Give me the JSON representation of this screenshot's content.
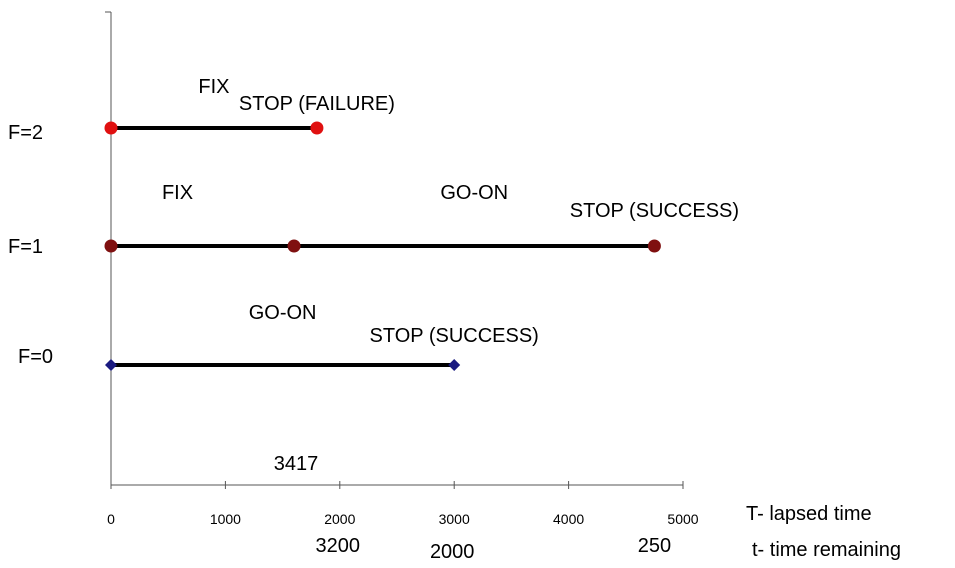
{
  "chart_data": {
    "type": "line",
    "xlim": [
      0,
      5000
    ],
    "x_ticks": [
      0,
      1000,
      2000,
      3000,
      4000,
      5000
    ],
    "x_axis_label": "T- lapsed time",
    "secondary_label": "t- time remaining",
    "secondary_values": [
      {
        "text": "3200",
        "at": 2000
      },
      {
        "text": "2000",
        "at": 3000
      },
      {
        "text": "250",
        "at": 4750
      }
    ],
    "floating_label": {
      "text": "3417",
      "at": 1600
    },
    "grid": false,
    "series": [
      {
        "name": "F=0",
        "color": "#1a1a80",
        "marker": "diamond",
        "points": [
          0,
          3000
        ],
        "segment_labels": [
          "GO-ON"
        ],
        "end_label": "STOP (SUCCESS)"
      },
      {
        "name": "F=1",
        "color": "#7f1010",
        "marker": "circle",
        "points": [
          0,
          1600,
          4750
        ],
        "segment_labels": [
          "FIX",
          "GO-ON"
        ],
        "end_label": "STOP (SUCCESS)"
      },
      {
        "name": "F=2",
        "color": "#e01010",
        "marker": "circle",
        "points": [
          0,
          1800
        ],
        "segment_labels": [
          "FIX"
        ],
        "end_label": "STOP (FAILURE)"
      }
    ]
  }
}
